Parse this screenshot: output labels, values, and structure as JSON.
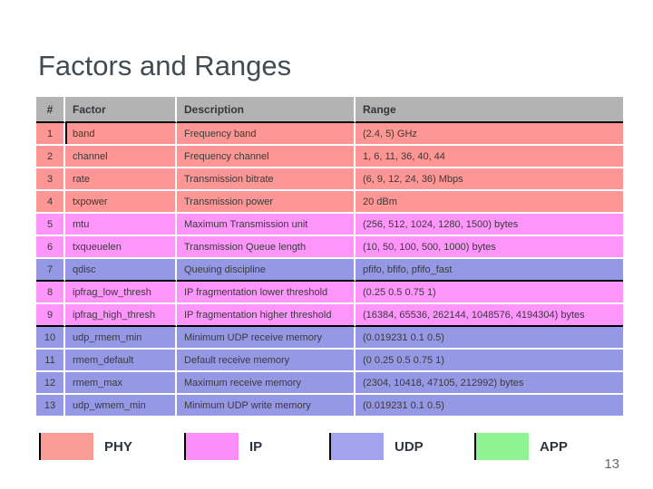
{
  "slide": {
    "title": "Factors and Ranges",
    "page_number": "13"
  },
  "table": {
    "columns": [
      "#",
      "Factor",
      "Description",
      "Range"
    ],
    "header_bg": "#B3B3B3",
    "rows": [
      {
        "num": "1",
        "factor": "band",
        "description": "Frequency band",
        "range": "(2.4, 5) GHz",
        "layer": "phy",
        "factor_left_border": true
      },
      {
        "num": "2",
        "factor": "channel",
        "description": "Frequency channel",
        "range": "1, 6, 11, 36, 40, 44",
        "layer": "phy"
      },
      {
        "num": "3",
        "factor": "rate",
        "description": "Transmission bitrate",
        "range": "(6, 9, 12, 24, 36) Mbps",
        "layer": "phy"
      },
      {
        "num": "4",
        "factor": "txpower",
        "description": "Transmission power",
        "range": "20 dBm",
        "layer": "phy"
      },
      {
        "num": "5",
        "factor": "mtu",
        "description": "Maximum Transmission unit",
        "range": "(256, 512, 1024, 1280, 1500) bytes",
        "layer": "ip"
      },
      {
        "num": "6",
        "factor": "txqueuelen",
        "description": "Transmission Queue length",
        "range": "(10, 50, 100, 500, 1000) bytes",
        "layer": "ip"
      },
      {
        "num": "7",
        "factor": "qdisc",
        "description": "Queuing discipline",
        "range": "pfifo, bfifo, pfifo_fast",
        "layer": "udp",
        "section_break": true
      },
      {
        "num": "8",
        "factor": "ipfrag_low_thresh",
        "description": "IP fragmentation lower threshold",
        "range": "(0.25 0.5 0.75 1)",
        "layer": "ip"
      },
      {
        "num": "9",
        "factor": "ipfrag_high_thresh",
        "description": "IP fragmentation higher threshold",
        "range": "(16384, 65536, 262144, 1048576, 4194304) bytes",
        "layer": "ip",
        "section_break": true
      },
      {
        "num": "10",
        "factor": "udp_rmem_min",
        "description": "Minimum UDP receive memory",
        "range": "(0.019231 0.1 0.5)",
        "layer": "udp"
      },
      {
        "num": "11",
        "factor": "rmem_default",
        "description": "Default receive memory",
        "range": "(0 0.25 0.5 0.75 1)",
        "layer": "udp"
      },
      {
        "num": "12",
        "factor": "rmem_max",
        "description": "Maximum receive memory",
        "range": "(2304, 10418, 47105, 212992) bytes",
        "layer": "udp"
      },
      {
        "num": "13",
        "factor": "udp_wmem_min",
        "description": "Minimum UDP write memory",
        "range": "(0.019231 0.1 0.5)",
        "layer": "udp"
      }
    ]
  },
  "layer_colors": {
    "phy": {
      "row": "#FD9694",
      "legend": "#F89C95"
    },
    "ip": {
      "row": "#FD95FB",
      "legend": "#FB8EF8"
    },
    "udp": {
      "row": "#9598E5",
      "legend": "#A2A3EE"
    },
    "app": {
      "row": "#8FF392",
      "legend": "#8FF392"
    }
  },
  "legend": {
    "items": [
      {
        "label": "PHY",
        "layer": "phy"
      },
      {
        "label": "IP",
        "layer": "ip"
      },
      {
        "label": "UDP",
        "layer": "udp"
      },
      {
        "label": "APP",
        "layer": "app"
      }
    ]
  }
}
